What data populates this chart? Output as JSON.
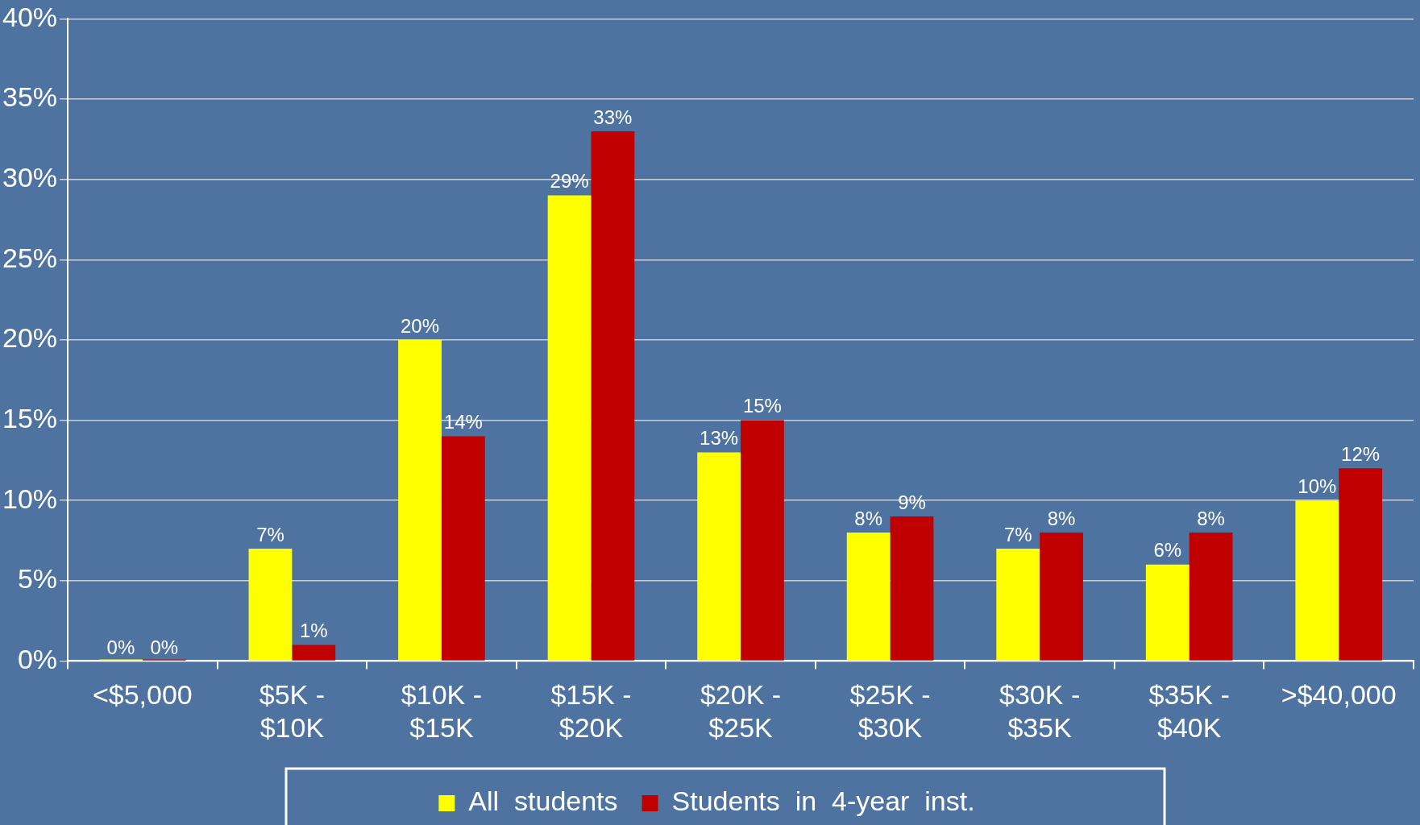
{
  "chart_data": {
    "type": "bar",
    "categories": [
      "<$5,000",
      "$5K - $10K",
      "$10K - $15K",
      "$15K - $20K",
      "$20K - $25K",
      "$25K - $30K",
      "$30K - $35K",
      "$35K - $40K",
      ">$40,000"
    ],
    "series": [
      {
        "name": "All  students",
        "color": "#ffff00",
        "values": [
          0,
          7,
          20,
          29,
          13,
          8,
          7,
          6,
          10
        ],
        "value_labels": [
          "0%",
          "7%",
          "20%",
          "29%",
          "13%",
          "8%",
          "7%",
          "6%",
          "10%"
        ]
      },
      {
        "name": "Students  in  4-year  inst.",
        "color": "#c00000",
        "values": [
          0,
          1,
          14,
          33,
          15,
          9,
          8,
          8,
          12
        ],
        "value_labels": [
          "0%",
          "1%",
          "14%",
          "33%",
          "15%",
          "9%",
          "8%",
          "8%",
          "12%"
        ]
      }
    ],
    "ylim": [
      0,
      40
    ],
    "yticks": [
      {
        "value": 0,
        "label": "0%"
      },
      {
        "value": 5,
        "label": "5%"
      },
      {
        "value": 10,
        "label": "10%"
      },
      {
        "value": 15,
        "label": "15%"
      },
      {
        "value": 20,
        "label": "20%"
      },
      {
        "value": 25,
        "label": "25%"
      },
      {
        "value": 30,
        "label": "30%"
      },
      {
        "value": 35,
        "label": "35%"
      },
      {
        "value": 40,
        "label": "40%"
      }
    ],
    "grid": "y",
    "legend": "bottom"
  }
}
